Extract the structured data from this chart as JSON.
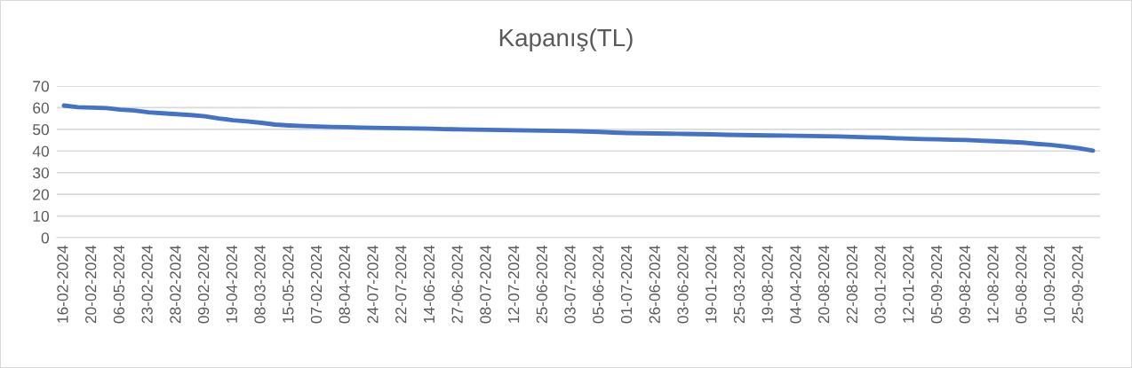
{
  "chart_data": {
    "type": "line",
    "title": "Kapanış(TL)",
    "categories": [
      "16-02-2024",
      null,
      "20-02-2024",
      null,
      "06-05-2024",
      null,
      "23-02-2024",
      null,
      "28-02-2024",
      null,
      "09-02-2024",
      null,
      "19-04-2024",
      null,
      "08-03-2024",
      null,
      "15-05-2024",
      null,
      "07-02-2024",
      null,
      "08-04-2024",
      null,
      "24-07-2024",
      null,
      "22-07-2024",
      null,
      "14-06-2024",
      null,
      "27-06-2024",
      null,
      "08-07-2024",
      null,
      "12-07-2024",
      null,
      "25-06-2024",
      null,
      "03-07-2024",
      null,
      "05-06-2024",
      null,
      "01-07-2024",
      null,
      "26-06-2024",
      null,
      "03-06-2024",
      null,
      "19-01-2024",
      null,
      "25-03-2024",
      null,
      "19-08-2024",
      null,
      "04-04-2024",
      null,
      "20-08-2024",
      null,
      "22-08-2024",
      null,
      "03-01-2024",
      null,
      "12-01-2024",
      null,
      "05-09-2024",
      null,
      "09-08-2024",
      null,
      "12-08-2024",
      null,
      "05-08-2024",
      null,
      "10-09-2024",
      null,
      "25-09-2024",
      null
    ],
    "series": [
      {
        "color": "#4472c4",
        "values": [
          61,
          60.2,
          60,
          59.8,
          59.1,
          58.7,
          57.9,
          57.4,
          57,
          56.6,
          56,
          55,
          54.2,
          53.7,
          53,
          52.2,
          51.8,
          51.5,
          51.3,
          51.1,
          51,
          50.8,
          50.7,
          50.6,
          50.5,
          50.4,
          50.3,
          50.1,
          50,
          49.9,
          49.8,
          49.7,
          49.6,
          49.5,
          49.4,
          49.3,
          49.2,
          49,
          48.8,
          48.5,
          48.3,
          48.2,
          48.1,
          48,
          47.9,
          47.8,
          47.7,
          47.5,
          47.4,
          47.3,
          47.2,
          47.1,
          47,
          46.9,
          46.8,
          46.7,
          46.5,
          46.3,
          46.2,
          45.9,
          45.7,
          45.5,
          45.4,
          45.2,
          45.1,
          44.8,
          44.5,
          44.2,
          43.9,
          43.3,
          42.8,
          42.1,
          41.3,
          40.2
        ]
      }
    ],
    "ylim": [
      0,
      70
    ],
    "yticks": [
      0,
      10,
      20,
      30,
      40,
      50,
      60,
      70
    ],
    "grid": "y",
    "marker": "none",
    "line_style": "solid"
  }
}
